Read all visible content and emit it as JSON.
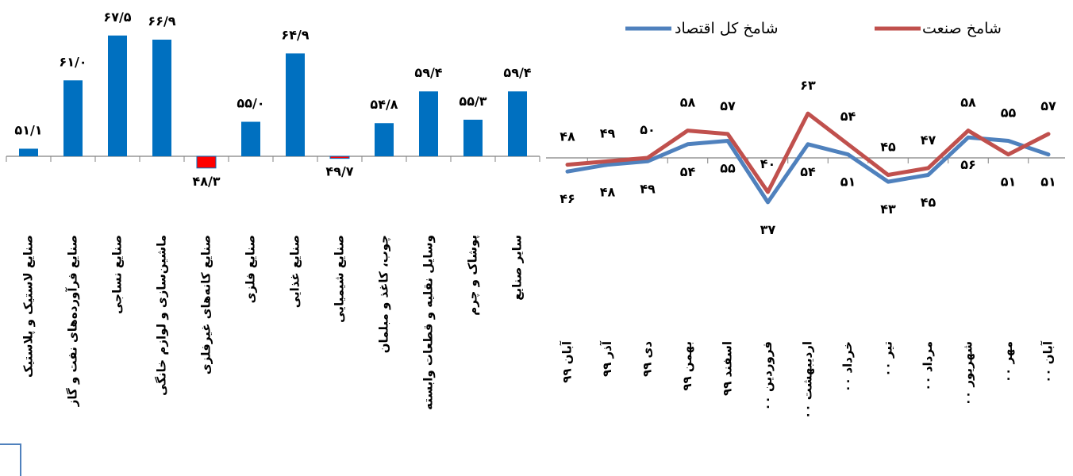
{
  "colors": {
    "bar": "#0070C0",
    "bar_negative": "#FF0000",
    "industry_line": "#C0504D",
    "economy_line": "#4F81BD",
    "axis": "#808080"
  },
  "chart_data": [
    {
      "type": "bar",
      "baseline": 50,
      "categories": [
        "صنایع لاستیک و پلاستیک",
        "صنایع فرآورده‌های نفت و گاز",
        "صنایع نساجی",
        "ماشین‌سازی و لوازم خانگی",
        "صنایع کانه‌های غیرفلزی",
        "صنایع فلزی",
        "صنایع غذایی",
        "صنایع شیمیایی",
        "چوب، کاغذ و مبلمان",
        "وسایل نقلیه و قطعات وابسته",
        "پوشاک و چرم",
        "سایر صنایع"
      ],
      "values": [
        51.1,
        61.0,
        67.5,
        66.9,
        48.3,
        55.0,
        64.9,
        49.7,
        54.8,
        59.4,
        55.3,
        59.4
      ],
      "labels": [
        "۵۱/۱",
        "۶۱/۰",
        "۶۷/۵",
        "۶۶/۹",
        "۴۸/۳",
        "۵۵/۰",
        "۶۴/۹",
        "۴۹/۷",
        "۵۴/۸",
        "۵۹/۴",
        "۵۵/۳",
        "۵۹/۴"
      ]
    },
    {
      "type": "line",
      "baseline": 50,
      "categories": [
        "آبان ۹۹",
        "آذر ۹۹",
        "دی ۹۹",
        "بهمن ۹۹",
        "اسفند ۹۹",
        "فروردین ۰۰",
        "اردیبهشت ۰۰",
        "خرداد ۰۰",
        "تیر ۰۰",
        "مرداد ۰۰",
        "شهریور ۰۰",
        "مهر ۰۰",
        "آبان ۰۰"
      ],
      "legend": [
        "شامخ کل اقتصاد",
        "شامخ صنعت"
      ],
      "series": [
        {
          "name": "شامخ صنعت",
          "values": [
            48,
            49,
            50,
            58,
            57,
            40,
            63,
            54,
            45,
            47,
            58,
            51,
            57
          ],
          "labels": [
            "۴۸",
            "۴۹",
            "۵۰",
            "۵۸",
            "۵۷",
            "۴۰",
            "۶۳",
            "۵۴",
            "۴۵",
            "۴۷",
            "۵۸",
            "۵۱",
            "۵۷"
          ]
        },
        {
          "name": "شامخ کل اقتصاد",
          "values": [
            46,
            48,
            49,
            54,
            55,
            37,
            54,
            51,
            43,
            45,
            56,
            55,
            51
          ],
          "labels": [
            "۴۶",
            "۴۸",
            "۴۹",
            "۵۴",
            "۵۵",
            "۳۷",
            "۵۴",
            "۵۱",
            "۴۳",
            "۴۵",
            "۵۶",
            "۵۵",
            "۵۱"
          ]
        }
      ]
    }
  ]
}
